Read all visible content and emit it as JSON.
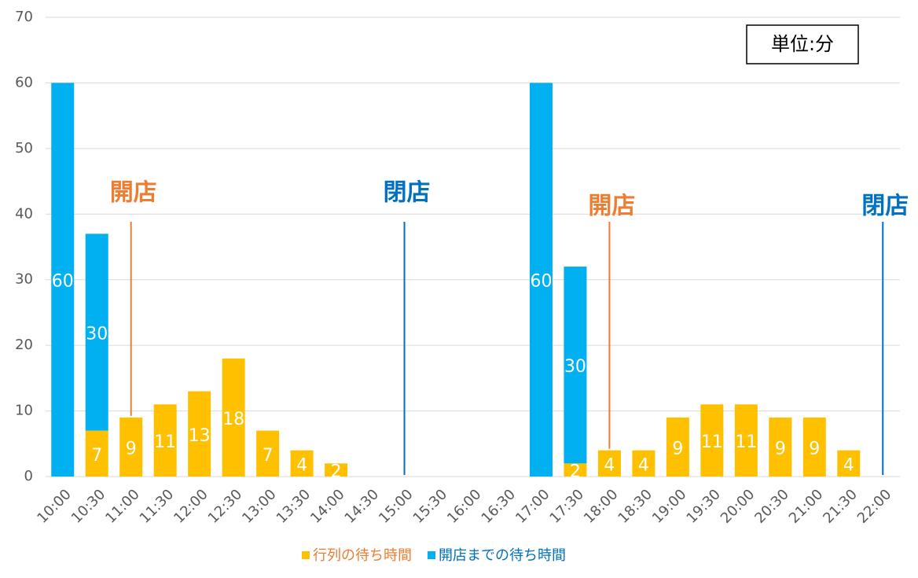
{
  "chart_data": {
    "type": "stacked_bar",
    "categories": [
      "10:00",
      "10:30",
      "11:00",
      "11:30",
      "12:00",
      "12:30",
      "13:00",
      "13:30",
      "14:00",
      "14:30",
      "15:00",
      "15:30",
      "16:00",
      "16:30",
      "17:00",
      "17:30",
      "18:00",
      "18:30",
      "19:00",
      "19:30",
      "20:00",
      "20:30",
      "21:00",
      "21:30",
      "22:00"
    ],
    "series": [
      {
        "name": "行列の待ち時間",
        "color": "#ffc000",
        "values": [
          0,
          7,
          9,
          11,
          13,
          18,
          7,
          4,
          2,
          0,
          0,
          0,
          0,
          0,
          0,
          2,
          4,
          4,
          9,
          11,
          11,
          9,
          9,
          4,
          0
        ]
      },
      {
        "name": "開店までの待ち時間",
        "color": "#00b0f0",
        "values": [
          60,
          30,
          0,
          0,
          0,
          0,
          0,
          0,
          0,
          0,
          0,
          0,
          0,
          0,
          60,
          30,
          0,
          0,
          0,
          0,
          0,
          0,
          0,
          0,
          0
        ]
      }
    ],
    "ylim": [
      0,
      70
    ],
    "yticks": [
      0,
      10,
      20,
      30,
      40,
      50,
      60,
      70
    ],
    "grid": true,
    "legend": "bottom",
    "unit_label": "単位:分",
    "annotations": [
      {
        "text": "開店",
        "at": "11:00",
        "color": "#ed7d31"
      },
      {
        "text": "閉店",
        "at": "15:00",
        "color": "#0070c0"
      },
      {
        "text": "開店",
        "at": "18:00",
        "color": "#ed7d31"
      },
      {
        "text": "閉店",
        "at": "22:00",
        "color": "#0070c0"
      }
    ]
  }
}
